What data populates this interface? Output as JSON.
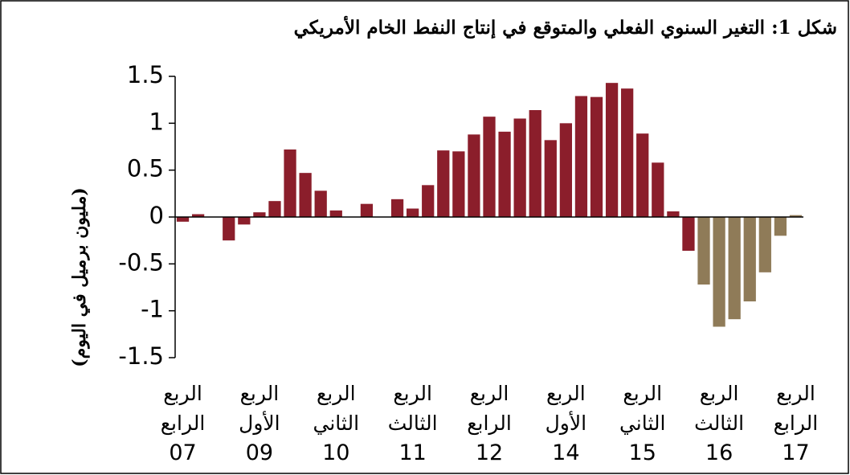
{
  "chart_data": {
    "type": "bar",
    "title": "شكل 1: التغير السنوي الفعلي والمتوقع في إنتاج النفط الخام الأمريكي",
    "y_label": "(مليون برميل في اليوم)",
    "categories": [
      [
        "الربع",
        "الرابع",
        "07"
      ],
      null,
      null,
      null,
      null,
      [
        "الربع",
        "الأول",
        "09"
      ],
      null,
      null,
      null,
      null,
      [
        "الربع",
        "الثاني",
        "10"
      ],
      null,
      null,
      null,
      null,
      [
        "الربع",
        "الثالث",
        "11"
      ],
      null,
      null,
      null,
      null,
      [
        "الربع",
        "الرابع",
        "12"
      ],
      null,
      null,
      null,
      null,
      [
        "الربع",
        "الأول",
        "14"
      ],
      null,
      null,
      null,
      null,
      [
        "الربع",
        "الثاني",
        "15"
      ],
      null,
      null,
      null,
      null,
      [
        "الربع",
        "الثالث",
        "16"
      ],
      null,
      null,
      null,
      null,
      [
        "الربع",
        "الرابع",
        "17"
      ]
    ],
    "values": [
      -0.05,
      0.03,
      0,
      -0.25,
      -0.08,
      0.05,
      0.17,
      0.72,
      0.47,
      0.28,
      0.07,
      0,
      0.14,
      0,
      0.19,
      0.09,
      0.34,
      0.71,
      0.7,
      0.88,
      1.07,
      0.91,
      1.05,
      1.14,
      0.82,
      1.0,
      1.29,
      1.28,
      1.43,
      1.37,
      0.89,
      0.58,
      0.06,
      -0.36,
      -0.72,
      -1.17,
      -1.09,
      -0.9,
      -0.59,
      -0.2,
      0.02
    ],
    "colors": [
      "#8b1e2b",
      "#8b1e2b",
      "#8b1e2b",
      "#8b1e2b",
      "#8b1e2b",
      "#8b1e2b",
      "#8b1e2b",
      "#8b1e2b",
      "#8b1e2b",
      "#8b1e2b",
      "#8b1e2b",
      "#8b1e2b",
      "#8b1e2b",
      "#8b1e2b",
      "#8b1e2b",
      "#8b1e2b",
      "#8b1e2b",
      "#8b1e2b",
      "#8b1e2b",
      "#8b1e2b",
      "#8b1e2b",
      "#8b1e2b",
      "#8b1e2b",
      "#8b1e2b",
      "#8b1e2b",
      "#8b1e2b",
      "#8b1e2b",
      "#8b1e2b",
      "#8b1e2b",
      "#8b1e2b",
      "#8b1e2b",
      "#8b1e2b",
      "#8b1e2b",
      "#8b1e2b",
      "#8f7b58",
      "#8f7b58",
      "#8f7b58",
      "#8f7b58",
      "#8f7b58",
      "#8f7b58",
      "#8f7b58"
    ],
    "ylim": [
      -1.5,
      1.5
    ],
    "yticks": [
      1.5,
      1,
      0.5,
      0,
      -0.5,
      -1,
      -1.5
    ]
  }
}
